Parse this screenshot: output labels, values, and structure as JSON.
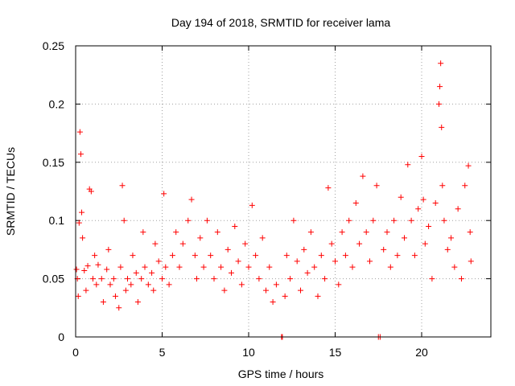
{
  "chart_data": {
    "type": "scatter",
    "title": "Day 194 of 2018, SRMTID for receiver lama",
    "xlabel": "GPS time / hours",
    "ylabel": "SRMTID / TECUs",
    "xlim": [
      0,
      24
    ],
    "ylim": [
      0,
      0.25
    ],
    "x_ticks": [
      0,
      5,
      10,
      15,
      20
    ],
    "x_tick_labels": [
      "0",
      "5",
      "10",
      "15",
      "20"
    ],
    "y_ticks": [
      0,
      0.05,
      0.1,
      0.15,
      0.2,
      0.25
    ],
    "y_tick_labels": [
      "0",
      "0.05",
      "0.1",
      "0.15",
      "0.2",
      "0.25"
    ],
    "grid": true,
    "marker": "+",
    "marker_color": "#ff0000",
    "zero_points_x": [
      11.9,
      11.95,
      17.5,
      17.6
    ],
    "series": [
      {
        "name": "SRMTID",
        "points": [
          [
            0.05,
            0.058
          ],
          [
            0.1,
            0.05
          ],
          [
            0.15,
            0.035
          ],
          [
            0.2,
            0.098
          ],
          [
            0.25,
            0.176
          ],
          [
            0.3,
            0.157
          ],
          [
            0.35,
            0.107
          ],
          [
            0.4,
            0.085
          ],
          [
            0.5,
            0.057
          ],
          [
            0.6,
            0.04
          ],
          [
            0.7,
            0.061
          ],
          [
            0.8,
            0.127
          ],
          [
            0.9,
            0.125
          ],
          [
            1.0,
            0.05
          ],
          [
            1.1,
            0.07
          ],
          [
            1.2,
            0.045
          ],
          [
            1.3,
            0.062
          ],
          [
            1.5,
            0.05
          ],
          [
            1.6,
            0.03
          ],
          [
            1.8,
            0.058
          ],
          [
            1.9,
            0.075
          ],
          [
            2.0,
            0.045
          ],
          [
            2.2,
            0.05
          ],
          [
            2.3,
            0.035
          ],
          [
            2.5,
            0.025
          ],
          [
            2.6,
            0.06
          ],
          [
            2.7,
            0.13
          ],
          [
            2.8,
            0.1
          ],
          [
            2.9,
            0.04
          ],
          [
            3.0,
            0.05
          ],
          [
            3.2,
            0.045
          ],
          [
            3.3,
            0.07
          ],
          [
            3.5,
            0.055
          ],
          [
            3.6,
            0.03
          ],
          [
            3.8,
            0.05
          ],
          [
            3.9,
            0.09
          ],
          [
            4.0,
            0.06
          ],
          [
            4.2,
            0.045
          ],
          [
            4.4,
            0.055
          ],
          [
            4.5,
            0.04
          ],
          [
            4.6,
            0.08
          ],
          [
            4.8,
            0.065
          ],
          [
            5.0,
            0.05
          ],
          [
            5.1,
            0.123
          ],
          [
            5.2,
            0.06
          ],
          [
            5.4,
            0.045
          ],
          [
            5.6,
            0.07
          ],
          [
            5.8,
            0.09
          ],
          [
            6.0,
            0.06
          ],
          [
            6.2,
            0.08
          ],
          [
            6.5,
            0.1
          ],
          [
            6.7,
            0.118
          ],
          [
            6.9,
            0.07
          ],
          [
            7.0,
            0.05
          ],
          [
            7.2,
            0.085
          ],
          [
            7.4,
            0.06
          ],
          [
            7.6,
            0.1
          ],
          [
            7.8,
            0.07
          ],
          [
            8.0,
            0.05
          ],
          [
            8.2,
            0.09
          ],
          [
            8.4,
            0.06
          ],
          [
            8.6,
            0.04
          ],
          [
            8.8,
            0.075
          ],
          [
            9.0,
            0.055
          ],
          [
            9.2,
            0.095
          ],
          [
            9.4,
            0.065
          ],
          [
            9.6,
            0.045
          ],
          [
            9.8,
            0.08
          ],
          [
            10.0,
            0.06
          ],
          [
            10.2,
            0.113
          ],
          [
            10.4,
            0.07
          ],
          [
            10.6,
            0.05
          ],
          [
            10.8,
            0.085
          ],
          [
            11.0,
            0.04
          ],
          [
            11.2,
            0.06
          ],
          [
            11.4,
            0.03
          ],
          [
            11.6,
            0.045
          ],
          [
            12.1,
            0.035
          ],
          [
            12.2,
            0.07
          ],
          [
            12.4,
            0.05
          ],
          [
            12.6,
            0.1
          ],
          [
            12.8,
            0.065
          ],
          [
            13.0,
            0.04
          ],
          [
            13.2,
            0.075
          ],
          [
            13.4,
            0.055
          ],
          [
            13.6,
            0.09
          ],
          [
            13.8,
            0.06
          ],
          [
            14.0,
            0.035
          ],
          [
            14.2,
            0.07
          ],
          [
            14.4,
            0.05
          ],
          [
            14.6,
            0.128
          ],
          [
            14.8,
            0.08
          ],
          [
            15.0,
            0.065
          ],
          [
            15.2,
            0.045
          ],
          [
            15.4,
            0.09
          ],
          [
            15.6,
            0.07
          ],
          [
            15.8,
            0.1
          ],
          [
            16.0,
            0.06
          ],
          [
            16.2,
            0.115
          ],
          [
            16.4,
            0.08
          ],
          [
            16.6,
            0.138
          ],
          [
            16.8,
            0.09
          ],
          [
            17.0,
            0.065
          ],
          [
            17.2,
            0.1
          ],
          [
            17.4,
            0.13
          ],
          [
            17.8,
            0.075
          ],
          [
            18.0,
            0.09
          ],
          [
            18.2,
            0.06
          ],
          [
            18.4,
            0.1
          ],
          [
            18.6,
            0.07
          ],
          [
            18.8,
            0.12
          ],
          [
            19.0,
            0.085
          ],
          [
            19.2,
            0.148
          ],
          [
            19.4,
            0.1
          ],
          [
            19.6,
            0.07
          ],
          [
            19.8,
            0.11
          ],
          [
            20.0,
            0.155
          ],
          [
            20.1,
            0.118
          ],
          [
            20.2,
            0.08
          ],
          [
            20.4,
            0.095
          ],
          [
            20.6,
            0.05
          ],
          [
            20.8,
            0.115
          ],
          [
            21.0,
            0.2
          ],
          [
            21.05,
            0.215
          ],
          [
            21.1,
            0.235
          ],
          [
            21.15,
            0.18
          ],
          [
            21.2,
            0.13
          ],
          [
            21.3,
            0.1
          ],
          [
            21.5,
            0.075
          ],
          [
            21.7,
            0.085
          ],
          [
            21.9,
            0.06
          ],
          [
            22.1,
            0.11
          ],
          [
            22.3,
            0.05
          ],
          [
            22.5,
            0.13
          ],
          [
            22.7,
            0.147
          ],
          [
            22.8,
            0.09
          ],
          [
            22.85,
            0.065
          ]
        ]
      }
    ]
  }
}
